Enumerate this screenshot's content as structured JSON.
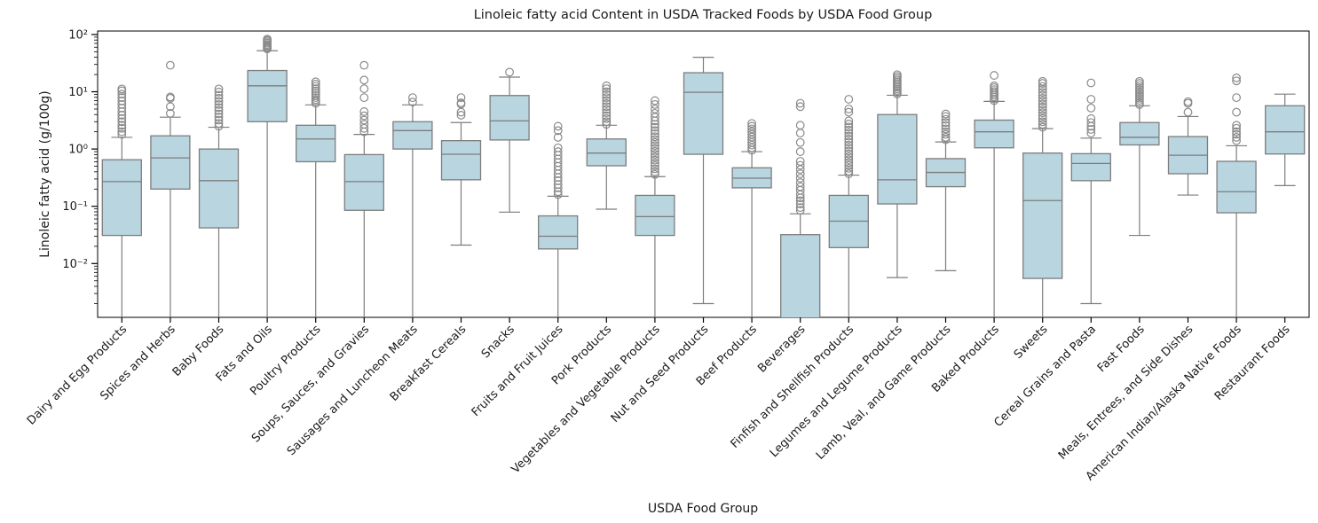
{
  "chart_data": {
    "type": "box",
    "title": "Linoleic fatty acid Content in USDA Tracked Foods by USDA Food Group",
    "xlabel": "USDA Food Group",
    "ylabel": "Linoleic fatty acid (g/100g)",
    "y_scale": "log",
    "ylim": [
      0.00115,
      115
    ],
    "grid": false,
    "legend": "none",
    "y_major_ticks": [
      {
        "value": 0.01,
        "label": "10⁻²"
      },
      {
        "value": 0.1,
        "label": "10⁻¹"
      },
      {
        "value": 1,
        "label": "10⁰"
      },
      {
        "value": 10,
        "label": "10¹"
      },
      {
        "value": 100,
        "label": "10²"
      }
    ],
    "colors": {
      "box_fill": "#b8d5e0",
      "box_edge": "#7d7d7d",
      "whisker": "#7d7d7d",
      "median": "#7d7d7d",
      "outlier": "#8a8a8a",
      "axis": "#000000"
    },
    "categories": [
      "Dairy and Egg Products",
      "Spices and Herbs",
      "Baby Foods",
      "Fats and Oils",
      "Poultry Products",
      "Soups, Sauces, and Gravies",
      "Sausages and Luncheon Meats",
      "Breakfast Cereals",
      "Snacks",
      "Fruits and Fruit Juices",
      "Pork Products",
      "Vegetables and Vegetable Products",
      "Nut and Seed Products",
      "Beef Products",
      "Beverages",
      "Finfish and Shellfish Products",
      "Legumes and Legume Products",
      "Lamb, Veal, and Game Products",
      "Baked Products",
      "Sweets",
      "Cereal Grains and Pasta",
      "Fast Foods",
      "Meals, Entrees, and Side Dishes",
      "American Indian/Alaska Native Foods",
      "Restaurant Foods"
    ],
    "boxes": [
      {
        "category": "Dairy and Egg Products",
        "whisker_low": null,
        "lower_clipped": true,
        "q1": 0.031,
        "median": 0.27,
        "q3": 0.65,
        "whisker_high": 1.6,
        "outliers": [
          1.8,
          2.0,
          2.3,
          2.6,
          3.0,
          3.4,
          3.9,
          4.5,
          5.2,
          6.0,
          6.9,
          7.9,
          9.1,
          10.4,
          11.2
        ]
      },
      {
        "category": "Spices and Herbs",
        "whisker_low": null,
        "lower_clipped": true,
        "q1": 0.2,
        "median": 0.7,
        "q3": 1.7,
        "whisker_high": 3.6,
        "outliers": [
          4.2,
          5.5,
          7.7,
          8.1,
          29
        ]
      },
      {
        "category": "Baby Foods",
        "whisker_low": null,
        "lower_clipped": true,
        "q1": 0.042,
        "median": 0.28,
        "q3": 1.0,
        "whisker_high": 2.4,
        "outliers": [
          2.5,
          2.8,
          3.2,
          3.6,
          4.1,
          4.7,
          5.3,
          6.0,
          6.8,
          7.7,
          8.7,
          9.9,
          11.2
        ]
      },
      {
        "category": "Fats and Oils",
        "whisker_low": null,
        "lower_clipped": true,
        "q1": 3.0,
        "median": 12.7,
        "q3": 23.5,
        "whisker_high": 52,
        "outliers": [
          56,
          58,
          61,
          64,
          67,
          71,
          75,
          79,
          83
        ]
      },
      {
        "category": "Poultry Products",
        "whisker_low": null,
        "lower_clipped": true,
        "q1": 0.6,
        "median": 1.5,
        "q3": 2.6,
        "whisker_high": 5.9,
        "outliers": [
          6.3,
          6.8,
          7.3,
          7.9,
          8.6,
          9.4,
          10.3,
          11.3,
          12.4,
          13.6,
          14.9
        ]
      },
      {
        "category": "Soups, Sauces, and Gravies",
        "whisker_low": null,
        "lower_clipped": true,
        "q1": 0.085,
        "median": 0.27,
        "q3": 0.8,
        "whisker_high": 1.8,
        "outliers": [
          2.0,
          2.3,
          2.7,
          3.2,
          3.8,
          4.5,
          7.9,
          11.3,
          16,
          29
        ]
      },
      {
        "category": "Sausages and Luncheon Meats",
        "whisker_low": null,
        "lower_clipped": true,
        "q1": 1.0,
        "median": 2.1,
        "q3": 3.0,
        "whisker_high": 5.9,
        "outliers": [
          6.6,
          7.9
        ]
      },
      {
        "category": "Breakfast Cereals",
        "whisker_low": 0.021,
        "lower_clipped": false,
        "q1": 0.29,
        "median": 0.81,
        "q3": 1.4,
        "whisker_high": 2.9,
        "outliers": [
          3.9,
          4.4,
          6.1,
          6.4,
          7.9
        ]
      },
      {
        "category": "Snacks",
        "whisker_low": 0.079,
        "lower_clipped": false,
        "q1": 1.44,
        "median": 3.1,
        "q3": 8.6,
        "whisker_high": 18,
        "outliers": [
          22
        ]
      },
      {
        "category": "Fruits and Fruit Juices",
        "whisker_low": null,
        "lower_clipped": true,
        "q1": 0.018,
        "median": 0.03,
        "q3": 0.068,
        "whisker_high": 0.15,
        "outliers": [
          0.16,
          0.18,
          0.21,
          0.24,
          0.28,
          0.32,
          0.37,
          0.43,
          0.5,
          0.58,
          0.67,
          0.78,
          0.9,
          1.05,
          1.6,
          2.1,
          2.5
        ]
      },
      {
        "category": "Pork Products",
        "whisker_low": 0.089,
        "lower_clipped": false,
        "q1": 0.51,
        "median": 0.85,
        "q3": 1.5,
        "whisker_high": 2.6,
        "outliers": [
          2.7,
          3.0,
          3.4,
          3.8,
          4.3,
          4.9,
          5.5,
          6.2,
          7.0,
          7.9,
          8.9,
          10.0,
          11.3,
          12.7
        ]
      },
      {
        "category": "Vegetables and Vegetable Products",
        "whisker_low": null,
        "lower_clipped": true,
        "q1": 0.031,
        "median": 0.066,
        "q3": 0.155,
        "whisker_high": 0.33,
        "outliers": [
          0.36,
          0.4,
          0.45,
          0.51,
          0.57,
          0.64,
          0.72,
          0.81,
          0.91,
          1.02,
          1.15,
          1.3,
          1.46,
          1.64,
          1.85,
          2.1,
          2.4,
          2.7,
          3.1,
          3.6,
          4.2,
          5.0,
          6.0,
          7.0
        ]
      },
      {
        "category": "Nut and Seed Products",
        "whisker_low": 0.002,
        "lower_clipped": false,
        "q1": 0.81,
        "median": 9.8,
        "q3": 21.5,
        "whisker_high": 40,
        "outliers": []
      },
      {
        "category": "Beef Products",
        "whisker_low": null,
        "lower_clipped": true,
        "q1": 0.21,
        "median": 0.31,
        "q3": 0.47,
        "whisker_high": 0.9,
        "outliers": [
          0.95,
          1.05,
          1.17,
          1.3,
          1.45,
          1.62,
          1.8,
          2.0,
          2.25,
          2.5,
          2.8
        ]
      },
      {
        "category": "Beverages",
        "whisker_low": null,
        "lower_clipped": true,
        "q1": null,
        "median": null,
        "q3": 0.032,
        "whisker_high": 0.074,
        "outliers": [
          0.085,
          0.095,
          0.11,
          0.125,
          0.14,
          0.16,
          0.19,
          0.22,
          0.26,
          0.31,
          0.37,
          0.44,
          0.52,
          0.61,
          0.9,
          1.3,
          1.9,
          2.6,
          5.5,
          6.3
        ]
      },
      {
        "category": "Finfish and Shellfish Products",
        "whisker_low": null,
        "lower_clipped": true,
        "q1": 0.019,
        "median": 0.055,
        "q3": 0.155,
        "whisker_high": 0.35,
        "outliers": [
          0.37,
          0.41,
          0.46,
          0.52,
          0.58,
          0.65,
          0.73,
          0.82,
          0.92,
          1.04,
          1.17,
          1.32,
          1.49,
          1.68,
          1.9,
          2.14,
          2.42,
          2.73,
          3.1,
          4.4,
          5.0,
          7.4
        ]
      },
      {
        "category": "Legumes and Legume Products",
        "whisker_low": 0.0057,
        "lower_clipped": false,
        "q1": 0.11,
        "median": 0.29,
        "q3": 4.0,
        "whisker_high": 8.7,
        "outliers": [
          9.2,
          9.8,
          10.5,
          11.2,
          12.0,
          12.9,
          13.9,
          14.9,
          16.0,
          17.2,
          18.5,
          19.9
        ]
      },
      {
        "category": "Lamb, Veal, and Game Products",
        "whisker_low": 0.0075,
        "lower_clipped": false,
        "q1": 0.22,
        "median": 0.39,
        "q3": 0.68,
        "whisker_high": 1.33,
        "outliers": [
          1.45,
          1.6,
          1.8,
          2.0,
          2.25,
          2.55,
          2.9,
          3.3,
          3.7,
          4.1
        ]
      },
      {
        "category": "Baked Products",
        "whisker_low": null,
        "lower_clipped": true,
        "q1": 1.05,
        "median": 2.0,
        "q3": 3.2,
        "whisker_high": 6.8,
        "outliers": [
          7.0,
          7.5,
          8.1,
          8.7,
          9.4,
          10.1,
          10.9,
          11.8,
          12.7,
          19.3
        ]
      },
      {
        "category": "Sweets",
        "whisker_low": null,
        "lower_clipped": true,
        "q1": 0.0055,
        "median": 0.126,
        "q3": 0.85,
        "whisker_high": 2.27,
        "outliers": [
          2.4,
          2.7,
          3.0,
          3.4,
          3.8,
          4.3,
          4.8,
          5.4,
          6.1,
          6.9,
          7.7,
          8.7,
          9.8,
          11.0,
          12.4,
          14.0,
          15.2
        ]
      },
      {
        "category": "Cereal Grains and Pasta",
        "whisker_low": 0.002,
        "lower_clipped": false,
        "q1": 0.28,
        "median": 0.56,
        "q3": 0.83,
        "whisker_high": 1.55,
        "outliers": [
          1.9,
          2.2,
          2.5,
          2.9,
          3.4,
          5.2,
          7.4,
          14.3
        ]
      },
      {
        "category": "Fast Foods",
        "whisker_low": 0.031,
        "lower_clipped": false,
        "q1": 1.18,
        "median": 1.6,
        "q3": 2.9,
        "whisker_high": 5.7,
        "outliers": [
          6.0,
          6.5,
          7.1,
          7.7,
          8.4,
          9.1,
          9.9,
          10.8,
          11.8,
          12.8,
          14.0,
          15.2
        ]
      },
      {
        "category": "Meals, Entrees, and Side Dishes",
        "whisker_low": 0.157,
        "lower_clipped": false,
        "q1": 0.37,
        "median": 0.78,
        "q3": 1.65,
        "whisker_high": 3.7,
        "outliers": [
          4.4,
          6.3,
          6.7
        ]
      },
      {
        "category": "American Indian/Alaska Native Foods",
        "whisker_low": null,
        "lower_clipped": true,
        "q1": 0.077,
        "median": 0.18,
        "q3": 0.61,
        "whisker_high": 1.14,
        "outliers": [
          1.4,
          1.6,
          1.8,
          2.0,
          2.3,
          2.6,
          4.4,
          7.9,
          15.5,
          17.5
        ]
      },
      {
        "category": "Restaurant Foods",
        "whisker_low": 0.23,
        "lower_clipped": false,
        "q1": 0.82,
        "median": 2.0,
        "q3": 5.7,
        "whisker_high": 9.1,
        "outliers": []
      }
    ]
  }
}
